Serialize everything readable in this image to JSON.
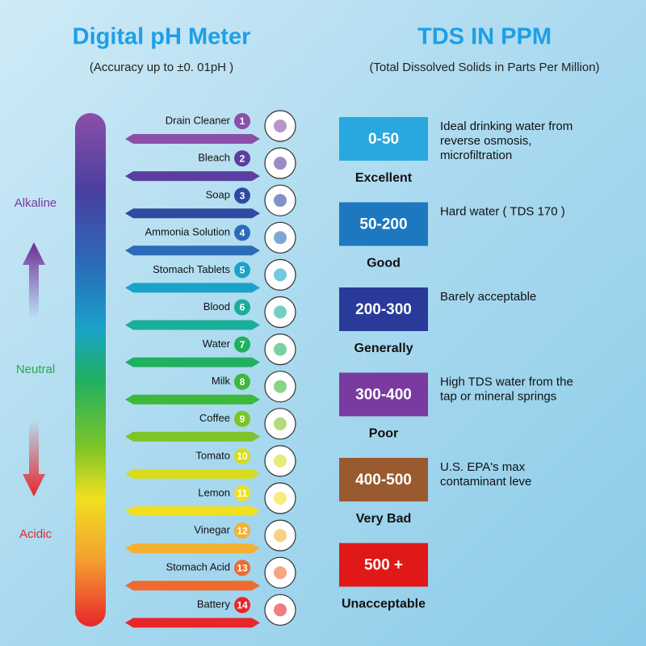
{
  "left": {
    "title": "Digital pH Meter",
    "subtitle": "(Accuracy up to  ±0. 01pH )",
    "scale_labels": [
      {
        "text": "Alkaline",
        "color": "#7a3aa0"
      },
      {
        "text": "Neutral",
        "color": "#2aa84a"
      },
      {
        "text": "Acidic",
        "color": "#e8262a"
      }
    ],
    "items": [
      {
        "number": 1,
        "label": "Drain Cleaner",
        "color": "#8b4fa8"
      },
      {
        "number": 2,
        "label": "Bleach",
        "color": "#5a3f9e"
      },
      {
        "number": 3,
        "label": "Soap",
        "color": "#2f4aa0"
      },
      {
        "number": 4,
        "label": "Ammonia Solution",
        "color": "#2a6cb8"
      },
      {
        "number": 5,
        "label": "Stomach Tablets",
        "color": "#1aa3c8"
      },
      {
        "number": 6,
        "label": "Blood",
        "color": "#1aae9a"
      },
      {
        "number": 7,
        "label": "Water",
        "color": "#20b060"
      },
      {
        "number": 8,
        "label": "Milk",
        "color": "#3cb83a"
      },
      {
        "number": 9,
        "label": "Coffee",
        "color": "#7cc428"
      },
      {
        "number": 10,
        "label": "Tomato",
        "color": "#d8dc20"
      },
      {
        "number": 11,
        "label": "Lemon",
        "color": "#f0e020"
      },
      {
        "number": 12,
        "label": "Vinegar",
        "color": "#f4b030"
      },
      {
        "number": 13,
        "label": "Stomach Acid",
        "color": "#ef6a2e"
      },
      {
        "number": 14,
        "label": "Battery",
        "color": "#e8262a"
      }
    ]
  },
  "right": {
    "title": "TDS IN PPM",
    "subtitle": "(Total Dissolved Solids in Parts Per Million)",
    "levels": [
      {
        "range": "0-50",
        "rating": "Excellent",
        "color": "#29a8e0",
        "description": [
          "Ideal drinking water from",
          "reverse osmosis,",
          "microfiltration"
        ]
      },
      {
        "range": "50-200",
        "rating": "Good",
        "color": "#1e78c0",
        "description": [
          "Hard water ( TDS 170 )"
        ]
      },
      {
        "range": "200-300",
        "rating": "Generally",
        "color": "#2a3a9a",
        "description": [
          "Barely acceptable"
        ]
      },
      {
        "range": "300-400",
        "rating": "Poor",
        "color": "#7a3aa0",
        "description": [
          "High TDS water from the",
          "tap or mineral springs"
        ]
      },
      {
        "range": "400-500",
        "rating": "Very Bad",
        "color": "#9a5a30",
        "description": [
          "U.S. EPA's max",
          "contaminant leve"
        ]
      },
      {
        "range": "500 +",
        "rating": "Unacceptable",
        "color": "#e01818",
        "description": []
      }
    ]
  }
}
